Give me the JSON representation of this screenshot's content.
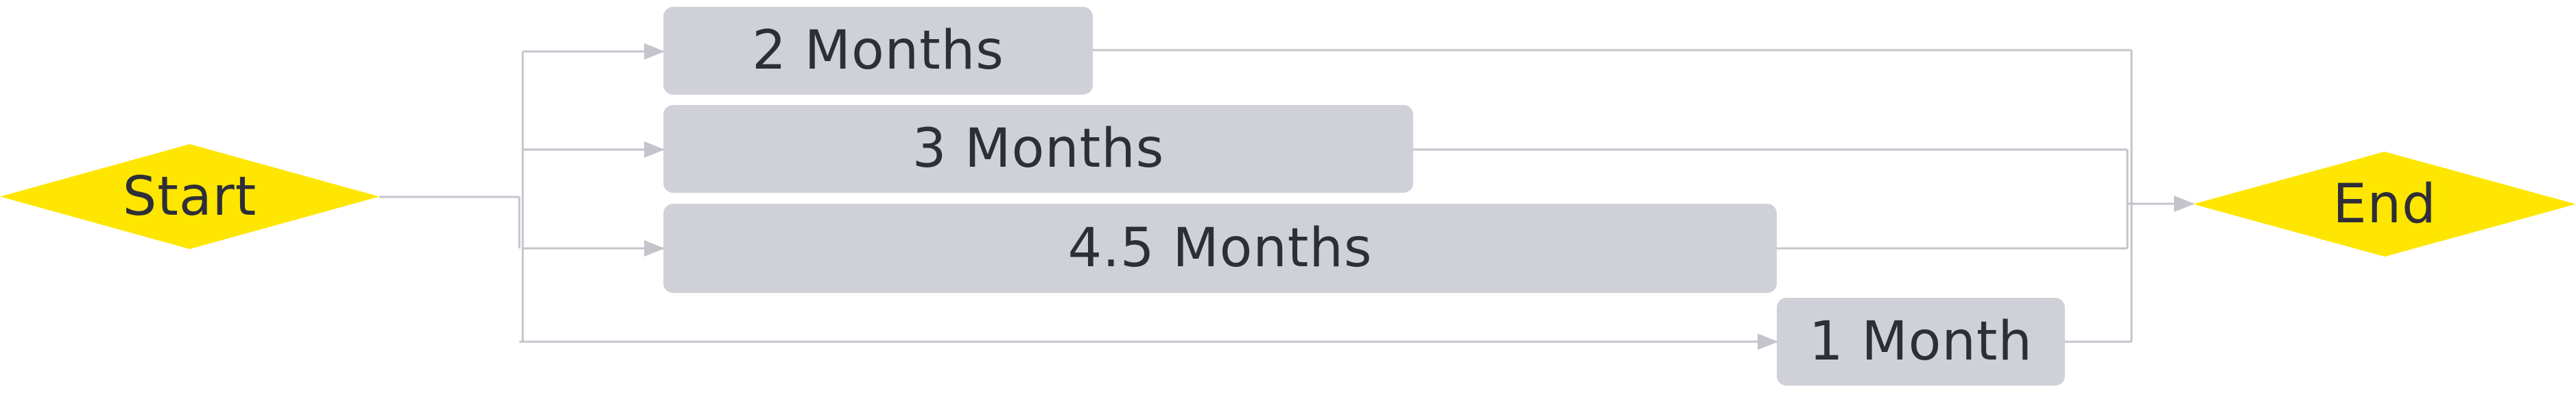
{
  "diagram": {
    "start": {
      "label": "Start"
    },
    "end": {
      "label": "End"
    },
    "tasks": [
      {
        "label": "2 Months"
      },
      {
        "label": "3 Months"
      },
      {
        "label": "4.5 Months"
      },
      {
        "label": "1 Month"
      }
    ],
    "colors": {
      "milestone": "#ffe600",
      "task_box": "#d0d0d9",
      "connector": "#c4c4cd",
      "text": "#2e2e38"
    }
  }
}
